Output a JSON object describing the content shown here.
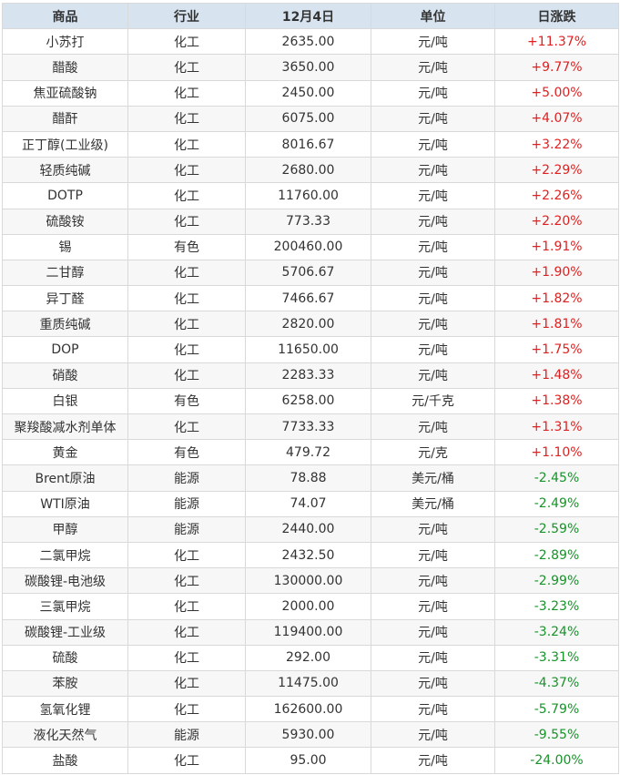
{
  "headers": [
    "商品",
    "行业",
    "12月4日",
    "单位",
    "日涨跌"
  ],
  "colors": {
    "up": "#e02020",
    "down": "#18932a",
    "header_bg": "#d7e4f0",
    "border": "#d9d9d9"
  },
  "rows": [
    {
      "name": "小苏打",
      "industry": "化工",
      "price": "2635.00",
      "unit": "元/吨",
      "change": "+11.37%",
      "dir": "up"
    },
    {
      "name": "醋酸",
      "industry": "化工",
      "price": "3650.00",
      "unit": "元/吨",
      "change": "+9.77%",
      "dir": "up"
    },
    {
      "name": "焦亚硫酸钠",
      "industry": "化工",
      "price": "2450.00",
      "unit": "元/吨",
      "change": "+5.00%",
      "dir": "up"
    },
    {
      "name": "醋酐",
      "industry": "化工",
      "price": "6075.00",
      "unit": "元/吨",
      "change": "+4.07%",
      "dir": "up"
    },
    {
      "name": "正丁醇(工业级)",
      "industry": "化工",
      "price": "8016.67",
      "unit": "元/吨",
      "change": "+3.22%",
      "dir": "up"
    },
    {
      "name": "轻质纯碱",
      "industry": "化工",
      "price": "2680.00",
      "unit": "元/吨",
      "change": "+2.29%",
      "dir": "up"
    },
    {
      "name": "DOTP",
      "industry": "化工",
      "price": "11760.00",
      "unit": "元/吨",
      "change": "+2.26%",
      "dir": "up"
    },
    {
      "name": "硫酸铵",
      "industry": "化工",
      "price": "773.33",
      "unit": "元/吨",
      "change": "+2.20%",
      "dir": "up"
    },
    {
      "name": "锡",
      "industry": "有色",
      "price": "200460.00",
      "unit": "元/吨",
      "change": "+1.91%",
      "dir": "up"
    },
    {
      "name": "二甘醇",
      "industry": "化工",
      "price": "5706.67",
      "unit": "元/吨",
      "change": "+1.90%",
      "dir": "up"
    },
    {
      "name": "异丁醛",
      "industry": "化工",
      "price": "7466.67",
      "unit": "元/吨",
      "change": "+1.82%",
      "dir": "up"
    },
    {
      "name": "重质纯碱",
      "industry": "化工",
      "price": "2820.00",
      "unit": "元/吨",
      "change": "+1.81%",
      "dir": "up"
    },
    {
      "name": "DOP",
      "industry": "化工",
      "price": "11650.00",
      "unit": "元/吨",
      "change": "+1.75%",
      "dir": "up"
    },
    {
      "name": "硝酸",
      "industry": "化工",
      "price": "2283.33",
      "unit": "元/吨",
      "change": "+1.48%",
      "dir": "up"
    },
    {
      "name": "白银",
      "industry": "有色",
      "price": "6258.00",
      "unit": "元/千克",
      "change": "+1.38%",
      "dir": "up"
    },
    {
      "name": "聚羧酸减水剂单体",
      "industry": "化工",
      "price": "7733.33",
      "unit": "元/吨",
      "change": "+1.31%",
      "dir": "up"
    },
    {
      "name": "黄金",
      "industry": "有色",
      "price": "479.72",
      "unit": "元/克",
      "change": "+1.10%",
      "dir": "up"
    },
    {
      "name": "Brent原油",
      "industry": "能源",
      "price": "78.88",
      "unit": "美元/桶",
      "change": "-2.45%",
      "dir": "down"
    },
    {
      "name": "WTI原油",
      "industry": "能源",
      "price": "74.07",
      "unit": "美元/桶",
      "change": "-2.49%",
      "dir": "down"
    },
    {
      "name": "甲醇",
      "industry": "能源",
      "price": "2440.00",
      "unit": "元/吨",
      "change": "-2.59%",
      "dir": "down"
    },
    {
      "name": "二氯甲烷",
      "industry": "化工",
      "price": "2432.50",
      "unit": "元/吨",
      "change": "-2.89%",
      "dir": "down"
    },
    {
      "name": "碳酸锂-电池级",
      "industry": "化工",
      "price": "130000.00",
      "unit": "元/吨",
      "change": "-2.99%",
      "dir": "down"
    },
    {
      "name": "三氯甲烷",
      "industry": "化工",
      "price": "2000.00",
      "unit": "元/吨",
      "change": "-3.23%",
      "dir": "down"
    },
    {
      "name": "碳酸锂-工业级",
      "industry": "化工",
      "price": "119400.00",
      "unit": "元/吨",
      "change": "-3.24%",
      "dir": "down"
    },
    {
      "name": "硫酸",
      "industry": "化工",
      "price": "292.00",
      "unit": "元/吨",
      "change": "-3.31%",
      "dir": "down"
    },
    {
      "name": "苯胺",
      "industry": "化工",
      "price": "11475.00",
      "unit": "元/吨",
      "change": "-4.37%",
      "dir": "down"
    },
    {
      "name": "氢氧化锂",
      "industry": "化工",
      "price": "162600.00",
      "unit": "元/吨",
      "change": "-5.79%",
      "dir": "down"
    },
    {
      "name": "液化天然气",
      "industry": "能源",
      "price": "5930.00",
      "unit": "元/吨",
      "change": "-9.55%",
      "dir": "down"
    },
    {
      "name": "盐酸",
      "industry": "化工",
      "price": "95.00",
      "unit": "元/吨",
      "change": "-24.00%",
      "dir": "down"
    }
  ]
}
